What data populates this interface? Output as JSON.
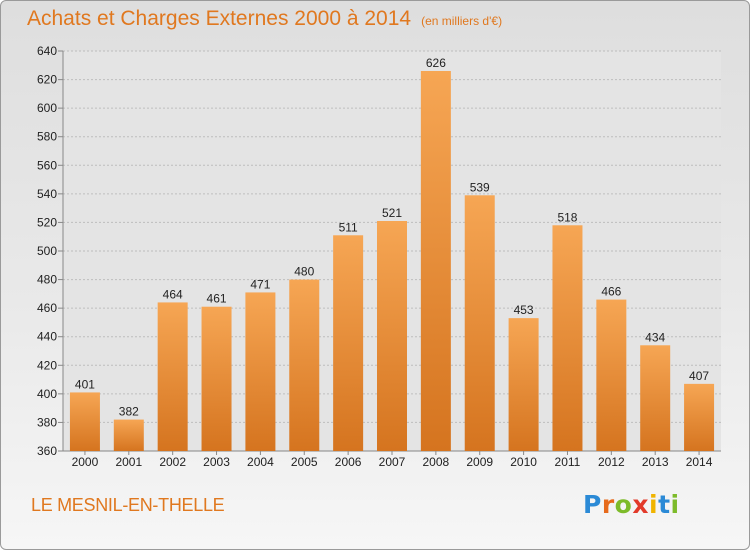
{
  "header": {
    "title": "Achats et Charges Externes 2000 à 2014",
    "subtitle": "(en milliers d'€)"
  },
  "footer": {
    "place": "LE MESNIL-EN-THELLE",
    "logo": {
      "letters": [
        "P",
        "r",
        "o",
        "x",
        "i",
        "t",
        "i"
      ],
      "colors": [
        "#2b8ad6",
        "#e66a1c",
        "#7dbb2a",
        "#e23a2a",
        "#f0b400",
        "#2b8ad6",
        "#7dbb2a"
      ]
    }
  },
  "colors": {
    "bar_light": "#f6a654",
    "bar_dark": "#d5741f",
    "accent": "#e0781f"
  },
  "chart_data": {
    "type": "bar",
    "title": "Achats et Charges Externes 2000 à 2014",
    "subtitle": "(en milliers d'€)",
    "xlabel": "",
    "ylabel": "",
    "categories": [
      "2000",
      "2001",
      "2002",
      "2003",
      "2004",
      "2005",
      "2006",
      "2007",
      "2008",
      "2009",
      "2010",
      "2011",
      "2012",
      "2013",
      "2014"
    ],
    "values": [
      401,
      382,
      464,
      461,
      471,
      480,
      511,
      521,
      626,
      539,
      453,
      518,
      466,
      434,
      407
    ],
    "ylim": [
      360,
      640
    ],
    "yticks": [
      360,
      380,
      400,
      420,
      440,
      460,
      480,
      500,
      520,
      540,
      560,
      580,
      600,
      620,
      640
    ],
    "grid": true,
    "legend": "none"
  }
}
